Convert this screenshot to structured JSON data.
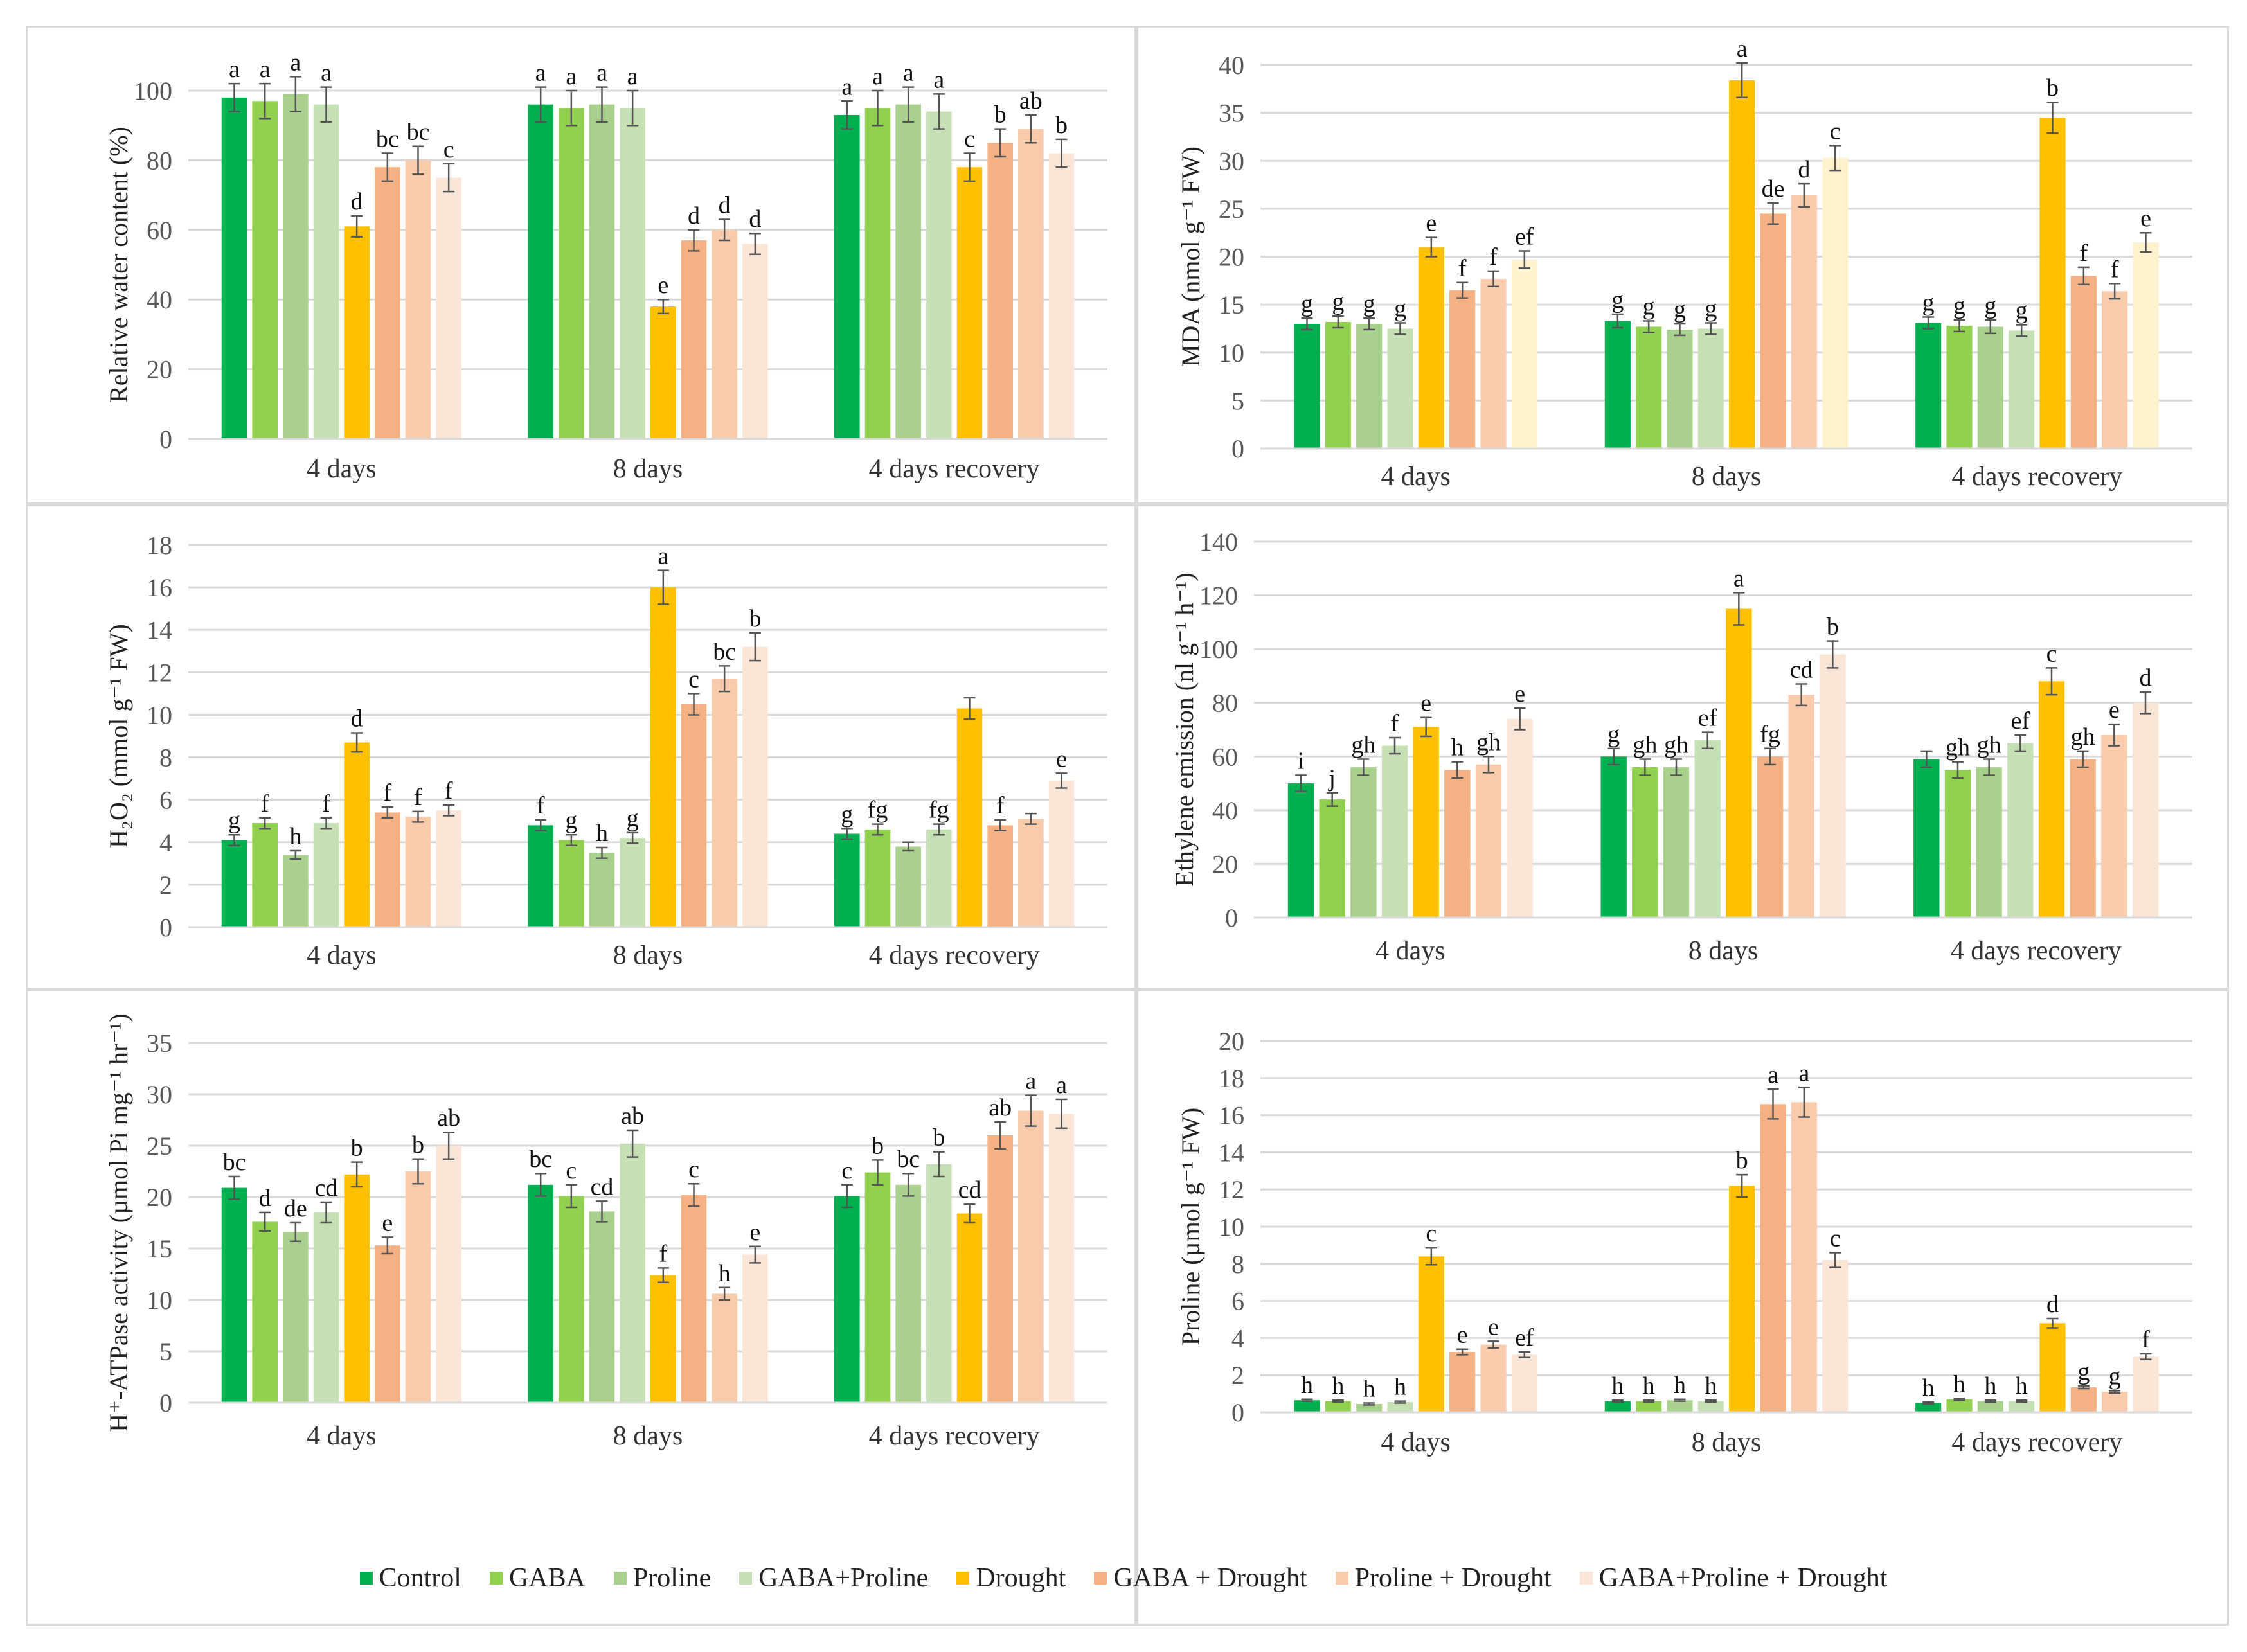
{
  "legend": {
    "series": [
      "Control",
      "GABA",
      "Proline",
      "GABA+Proline",
      "Drought",
      "GABA + Drought",
      "Proline + Drought",
      "GABA+Proline + Drought"
    ],
    "colors": [
      "#00B050",
      "#92D050",
      "#A9D18E",
      "#C5E0B4",
      "#FFC000",
      "#F4B183",
      "#F8CBAD",
      "#FBE5D6"
    ]
  },
  "chart_data": [
    {
      "type": "bar",
      "ylabel": "Relative water content (%)",
      "categories": [
        "4 days",
        "8 days",
        "4 days recovery"
      ],
      "ylim": [
        0,
        100
      ],
      "yticks": [
        0,
        20,
        40,
        60,
        80,
        100
      ],
      "grid": true,
      "series": [
        {
          "name": "Control",
          "values": [
            98,
            96,
            93
          ],
          "errors": [
            4,
            5,
            4
          ],
          "letters": [
            "a",
            "a",
            "a"
          ]
        },
        {
          "name": "GABA",
          "values": [
            97,
            95,
            95
          ],
          "errors": [
            5,
            5,
            5
          ],
          "letters": [
            "a",
            "a",
            "a"
          ]
        },
        {
          "name": "Proline",
          "values": [
            99,
            96,
            96
          ],
          "errors": [
            5,
            5,
            5
          ],
          "letters": [
            "a",
            "a",
            "a"
          ]
        },
        {
          "name": "GABA+Proline",
          "values": [
            96,
            95,
            94
          ],
          "errors": [
            5,
            5,
            5
          ],
          "letters": [
            "a",
            "a",
            "a"
          ]
        },
        {
          "name": "Drought",
          "values": [
            61,
            38,
            78
          ],
          "errors": [
            3,
            2,
            4
          ],
          "letters": [
            "d",
            "e",
            "c"
          ]
        },
        {
          "name": "GABA + Drought",
          "values": [
            78,
            57,
            85
          ],
          "errors": [
            4,
            3,
            4
          ],
          "letters": [
            "bc",
            "d",
            "b"
          ]
        },
        {
          "name": "Proline + Drought",
          "values": [
            80,
            60,
            89
          ],
          "errors": [
            4,
            3,
            4
          ],
          "letters": [
            "bc",
            "d",
            "ab"
          ]
        },
        {
          "name": "GABA+Proline + Drought",
          "values": [
            75,
            56,
            82
          ],
          "errors": [
            4,
            3,
            4
          ],
          "letters": [
            "c",
            "d",
            "b"
          ]
        }
      ]
    },
    {
      "type": "bar",
      "ylabel": "MDA (nmol g⁻¹ FW)",
      "categories": [
        "4 days",
        "8 days",
        "4 days recovery"
      ],
      "ylim": [
        0,
        40
      ],
      "yticks": [
        0,
        5,
        10,
        15,
        20,
        25,
        30,
        35,
        40
      ],
      "grid": true,
      "last_series_color": "#FFF2CC",
      "series": [
        {
          "name": "Control",
          "values": [
            13,
            13.3,
            13.1
          ],
          "errors": [
            0.6,
            0.7,
            0.6
          ],
          "letters": [
            "g",
            "g",
            "g"
          ]
        },
        {
          "name": "GABA",
          "values": [
            13.2,
            12.7,
            12.8
          ],
          "errors": [
            0.6,
            0.6,
            0.6
          ],
          "letters": [
            "g",
            "g",
            "g"
          ]
        },
        {
          "name": "Proline",
          "values": [
            13,
            12.4,
            12.7
          ],
          "errors": [
            0.6,
            0.6,
            0.7
          ],
          "letters": [
            "g",
            "g",
            "g"
          ]
        },
        {
          "name": "GABA+Proline",
          "values": [
            12.5,
            12.5,
            12.3
          ],
          "errors": [
            0.6,
            0.6,
            0.6
          ],
          "letters": [
            "g",
            "g",
            "g"
          ]
        },
        {
          "name": "Drought",
          "values": [
            21,
            38.4,
            34.5
          ],
          "errors": [
            1,
            1.8,
            1.6
          ],
          "letters": [
            "e",
            "a",
            "b"
          ]
        },
        {
          "name": "GABA + Drought",
          "values": [
            16.5,
            24.5,
            18
          ],
          "errors": [
            0.8,
            1.1,
            0.9
          ],
          "letters": [
            "f",
            "de",
            "f"
          ]
        },
        {
          "name": "Proline + Drought",
          "values": [
            17.7,
            26.4,
            16.4
          ],
          "errors": [
            0.8,
            1.2,
            0.8
          ],
          "letters": [
            "f",
            "d",
            "f"
          ]
        },
        {
          "name": "GABA+Proline + Drought",
          "values": [
            19.7,
            30.3,
            21.5
          ],
          "errors": [
            0.9,
            1.3,
            1
          ],
          " letters": null,
          "letters": [
            "ef",
            "c",
            "e"
          ]
        }
      ]
    },
    {
      "type": "bar",
      "ylabel": "H₂O₂ (mmol g⁻¹ FW)",
      "categories": [
        "4 days",
        "8 days",
        "4 days recovery"
      ],
      "ylim": [
        0,
        18
      ],
      "yticks": [
        0,
        2,
        4,
        6,
        8,
        10,
        12,
        14,
        16,
        18
      ],
      "grid": true,
      "series": [
        {
          "name": "Control",
          "values": [
            4.1,
            4.8,
            4.4
          ],
          "errors": [
            0.25,
            0.25,
            0.25
          ],
          "letters": [
            "g",
            "f",
            "g"
          ]
        },
        {
          "name": "GABA",
          "values": [
            4.9,
            4.1,
            4.6
          ],
          "errors": [
            0.25,
            0.25,
            0.25
          ],
          "letters": [
            "f",
            "g",
            "fg"
          ]
        },
        {
          "name": "Proline",
          "values": [
            3.4,
            3.5,
            3.8
          ],
          "errors": [
            0.2,
            0.25,
            0.2
          ],
          "letters": [
            "h",
            "h",
            ""
          ]
        },
        {
          "name": "GABA+Proline",
          "values": [
            4.9,
            4.2,
            4.6
          ],
          "errors": [
            0.25,
            0.25,
            0.25
          ],
          "letters": [
            "f",
            "g",
            "fg"
          ]
        },
        {
          "name": "Drought",
          "values": [
            8.7,
            16,
            10.3
          ],
          "errors": [
            0.45,
            0.8,
            0.5
          ],
          "letters": [
            "d",
            "a",
            ""
          ]
        },
        {
          "name": "GABA + Drought",
          "values": [
            5.4,
            10.5,
            4.8
          ],
          "errors": [
            0.25,
            0.5,
            0.25
          ],
          "letters": [
            "f",
            "c",
            "f"
          ]
        },
        {
          "name": "Proline + Drought",
          "values": [
            5.2,
            11.7,
            5.1
          ],
          "errors": [
            0.25,
            0.6,
            0.25
          ],
          "letters": [
            "f",
            "bc",
            ""
          ]
        },
        {
          "name": "GABA+Proline + Drought",
          "values": [
            5.5,
            13.2,
            6.9
          ],
          "errors": [
            0.25,
            0.65,
            0.35
          ],
          "letters": [
            "f",
            "b",
            "e"
          ]
        }
      ]
    },
    {
      "type": "bar",
      "ylabel": "Ethylene emission (nl g⁻¹ h⁻¹)",
      "categories": [
        "4 days",
        "8 days",
        "4 days recovery"
      ],
      "ylim": [
        0,
        140
      ],
      "yticks": [
        0,
        20,
        40,
        60,
        80,
        100,
        120,
        140
      ],
      "grid": true,
      "series": [
        {
          "name": "Control",
          "values": [
            50,
            60,
            59
          ],
          "errors": [
            3,
            3,
            3
          ],
          "letters": [
            "i",
            "g",
            ""
          ]
        },
        {
          "name": "GABA",
          "values": [
            44,
            56,
            55
          ],
          "errors": [
            2.5,
            3,
            3
          ],
          "letters": [
            "j",
            "gh",
            "gh"
          ]
        },
        {
          "name": "Proline",
          "values": [
            56,
            56,
            56
          ],
          "errors": [
            3,
            3,
            3
          ],
          "letters": [
            "gh",
            "gh",
            "gh"
          ]
        },
        {
          "name": "GABA+Proline",
          "values": [
            64,
            66,
            65
          ],
          "errors": [
            3,
            3,
            3
          ],
          "letters": [
            "f",
            "ef",
            "ef"
          ]
        },
        {
          "name": "Drought",
          "values": [
            71,
            115,
            88
          ],
          "errors": [
            3.5,
            6,
            5
          ],
          "letters": [
            "e",
            "a",
            "c"
          ]
        },
        {
          "name": "GABA + Drought",
          "values": [
            55,
            60,
            59
          ],
          "errors": [
            3,
            3,
            3
          ],
          "letters": [
            "h",
            "fg",
            "gh"
          ]
        },
        {
          "name": "Proline + Drought",
          "values": [
            57,
            83,
            68
          ],
          "errors": [
            3,
            4,
            4
          ],
          "letters": [
            "gh",
            "cd",
            "e"
          ]
        },
        {
          "name": "GABA+Proline + Drought",
          "values": [
            74,
            98,
            80
          ],
          "errors": [
            4,
            5,
            4
          ],
          "letters": [
            "e",
            "b",
            "d"
          ]
        }
      ]
    },
    {
      "type": "bar",
      "ylabel": "H⁺-ATPase activity (µmol Pi mg⁻¹ hr⁻¹)",
      "categories": [
        "4 days",
        "8 days",
        "4 days recovery"
      ],
      "ylim": [
        0,
        35
      ],
      "yticks": [
        0,
        5,
        10,
        15,
        20,
        25,
        30,
        35
      ],
      "grid": true,
      "series": [
        {
          "name": "Control",
          "values": [
            20.9,
            21.2,
            20.1
          ],
          "errors": [
            1.1,
            1.1,
            1.1
          ],
          "letters": [
            "bc",
            "bc",
            "c"
          ]
        },
        {
          "name": "GABA",
          "values": [
            17.6,
            20.1,
            22.4
          ],
          "errors": [
            0.9,
            1.1,
            1.2
          ],
          "letters": [
            "d",
            "c",
            "b"
          ]
        },
        {
          "name": "Proline",
          "values": [
            16.6,
            18.6,
            21.2
          ],
          "errors": [
            0.9,
            1,
            1.1
          ],
          "letters": [
            "de",
            "cd",
            "bc"
          ]
        },
        {
          "name": "GABA+Proline",
          "values": [
            18.5,
            25.2,
            23.2
          ],
          "errors": [
            1,
            1.3,
            1.2
          ],
          "letters": [
            "cd",
            "ab",
            "b"
          ]
        },
        {
          "name": "Drought",
          "values": [
            22.2,
            12.4,
            18.4
          ],
          "errors": [
            1.2,
            0.7,
            0.9
          ],
          "letters": [
            "b",
            "f",
            "cd"
          ]
        },
        {
          "name": "GABA + Drought",
          "values": [
            15.3,
            20.2,
            26
          ],
          "errors": [
            0.8,
            1.1,
            1.3
          ],
          "letters": [
            "e",
            "c",
            "ab"
          ]
        },
        {
          "name": "Proline + Drought",
          "values": [
            22.5,
            10.6,
            28.4
          ],
          "errors": [
            1.2,
            0.6,
            1.5
          ],
          "letters": [
            "b",
            "h",
            "a"
          ]
        },
        {
          "name": "GABA+Proline + Drought",
          "values": [
            25,
            14.4,
            28.1
          ],
          "errors": [
            1.3,
            0.8,
            1.4
          ],
          "letters": [
            "ab",
            "e",
            "a"
          ]
        }
      ]
    },
    {
      "type": "bar",
      "ylabel": "Proline (µmol g⁻¹ FW)",
      "categories": [
        "4 days",
        "8 days",
        "4 days recovery"
      ],
      "ylim": [
        0,
        20
      ],
      "yticks": [
        0,
        2,
        4,
        6,
        8,
        10,
        12,
        14,
        16,
        18,
        20
      ],
      "grid": true,
      "series": [
        {
          "name": "Control",
          "values": [
            0.65,
            0.6,
            0.5
          ],
          "errors": [
            0.05,
            0.05,
            0.05
          ],
          "letters": [
            "h",
            "h",
            "h"
          ]
        },
        {
          "name": "GABA",
          "values": [
            0.6,
            0.6,
            0.7
          ],
          "errors": [
            0.05,
            0.05,
            0.05
          ],
          "letters": [
            "h",
            "h",
            "h"
          ]
        },
        {
          "name": "Proline",
          "values": [
            0.45,
            0.65,
            0.6
          ],
          "errors": [
            0.05,
            0.05,
            0.05
          ],
          "letters": [
            "h",
            "h",
            "h"
          ]
        },
        {
          "name": "GABA+Proline",
          "values": [
            0.55,
            0.6,
            0.6
          ],
          "errors": [
            0.05,
            0.05,
            0.05
          ],
          "letters": [
            "h",
            "h",
            "h"
          ]
        },
        {
          "name": "Drought",
          "values": [
            8.4,
            12.2,
            4.8
          ],
          "errors": [
            0.45,
            0.6,
            0.25
          ],
          "letters": [
            "c",
            "b",
            "d"
          ]
        },
        {
          "name": "GABA + Drought",
          "values": [
            3.25,
            16.6,
            1.35
          ],
          "errors": [
            0.15,
            0.8,
            0.07
          ],
          "letters": [
            "e",
            "a",
            "g"
          ]
        },
        {
          "name": "Proline + Drought",
          "values": [
            3.65,
            16.7,
            1.1
          ],
          "errors": [
            0.18,
            0.8,
            0.06
          ],
          "letters": [
            "e",
            "a",
            "g"
          ]
        },
        {
          "name": "GABA+Proline + Drought",
          "values": [
            3.1,
            8.2,
            3.0
          ],
          "errors": [
            0.15,
            0.4,
            0.15
          ],
          "letters": [
            "ef",
            "c",
            "f"
          ]
        }
      ]
    }
  ]
}
